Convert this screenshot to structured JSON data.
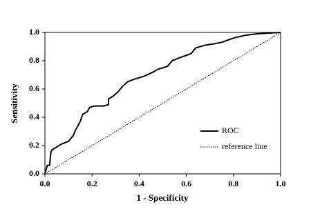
{
  "chart_data": {
    "type": "line",
    "x_label": "1 - Specificity",
    "y_label": "Sensitivity",
    "xlim": [
      0,
      1
    ],
    "ylim": [
      0,
      1
    ],
    "xticks": [
      {
        "value": 0,
        "label": "0.0"
      },
      0.2,
      0.4,
      0.6,
      0.8,
      {
        "value": 1,
        "label": "1.0"
      }
    ],
    "yticks": [
      {
        "value": 0,
        "label": "0.0"
      },
      0.2,
      0.4,
      0.6,
      0.8,
      {
        "value": 1,
        "label": "1.0"
      }
    ],
    "legend": "right",
    "series": [
      {
        "name": "ROC",
        "color": "#000000",
        "linestyle": "solid",
        "x": [
          0,
          0.005,
          0.01,
          0.02,
          0.025,
          0.03,
          0.05,
          0.07,
          0.1,
          0.12,
          0.13,
          0.15,
          0.16,
          0.18,
          0.19,
          0.21,
          0.25,
          0.27,
          0.27,
          0.29,
          0.31,
          0.33,
          0.35,
          0.38,
          0.42,
          0.46,
          0.48,
          0.52,
          0.54,
          0.57,
          0.62,
          0.64,
          0.68,
          0.72,
          0.75,
          0.8,
          0.85,
          0.9,
          0.95,
          1
        ],
        "values": [
          0,
          0.03,
          0.06,
          0.06,
          0.15,
          0.17,
          0.19,
          0.21,
          0.23,
          0.27,
          0.31,
          0.37,
          0.42,
          0.44,
          0.47,
          0.48,
          0.48,
          0.49,
          0.53,
          0.55,
          0.58,
          0.62,
          0.65,
          0.67,
          0.69,
          0.72,
          0.74,
          0.76,
          0.8,
          0.82,
          0.85,
          0.89,
          0.91,
          0.92,
          0.93,
          0.96,
          0.98,
          0.99,
          0.995,
          1
        ]
      },
      {
        "name": "reference line",
        "color": "#000000",
        "linestyle": "dotted",
        "x": [
          0,
          1
        ],
        "values": [
          0,
          1
        ]
      }
    ]
  }
}
